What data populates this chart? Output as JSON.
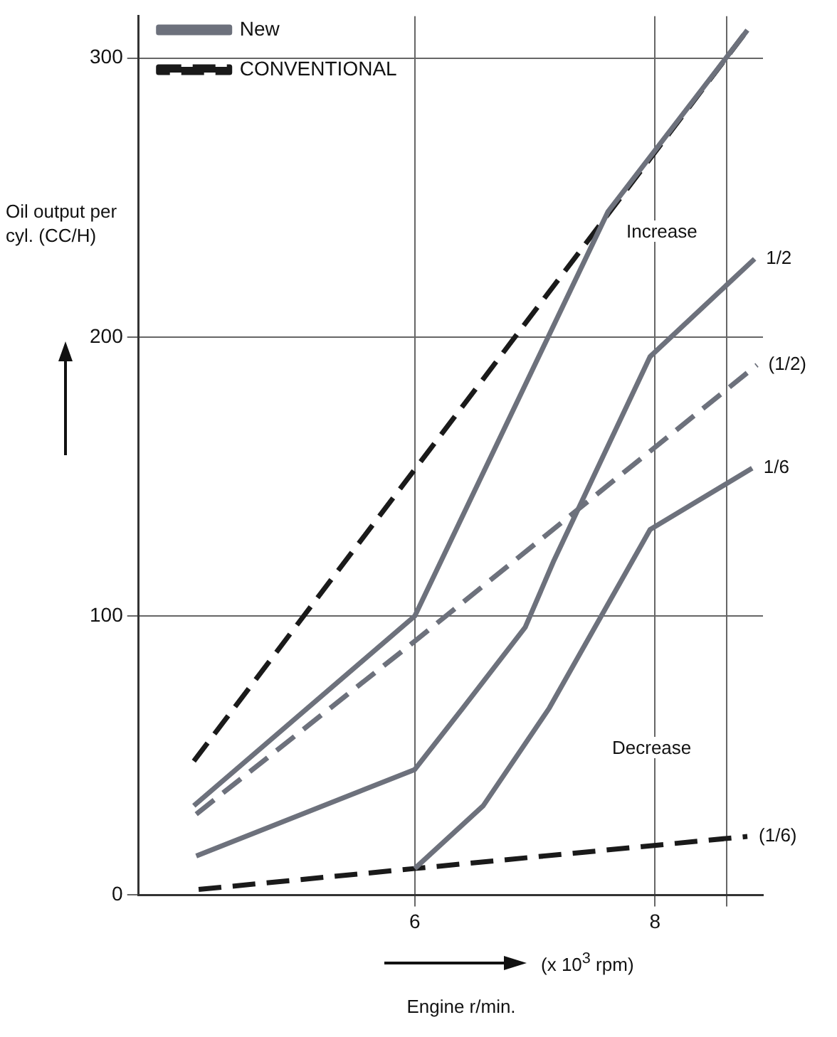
{
  "chart_data": {
    "type": "line",
    "xlabel": "Engine r/min.",
    "ylabel": "Oil output per cyl. (CC/H)",
    "xlim": [
      3.7,
      8.9
    ],
    "xticks": [
      6,
      8,
      {
        "value": 8.6,
        "label": null
      }
    ],
    "ylim": [
      0,
      315
    ],
    "yticks": [
      0,
      100,
      200,
      300
    ],
    "grid": true,
    "legend": "top left",
    "marker": "none",
    "series": [
      {
        "name": "New",
        "color": "#6d717c",
        "line_style": "solid",
        "x": [
          4.16,
          6,
          7.61,
          8.77
        ],
        "values": [
          32,
          100,
          245,
          310
        ]
      },
      {
        "name": "CONVENTIONAL",
        "color": "#1a1a1a",
        "line_style": "dashed",
        "x": [
          4.16,
          8.77
        ],
        "values": [
          48,
          310
        ]
      },
      {
        "color": "#6d717c",
        "line_style": "solid",
        "x": [
          4.18,
          6,
          6.4,
          6.92,
          7.16,
          7.96,
          8.83
        ],
        "values": [
          14,
          45,
          67,
          96,
          120,
          193,
          228
        ]
      },
      {
        "color": "#6d717c",
        "line_style": "dashed",
        "x": [
          4.18,
          6,
          8.85
        ],
        "values": [
          29,
          91,
          190
        ]
      },
      {
        "color": "#6d717c",
        "line_style": "solid",
        "x": [
          6,
          6.57,
          7.12,
          7.96,
          8.81
        ],
        "values": [
          9.5,
          32,
          67,
          131,
          153
        ]
      },
      {
        "color": "#1a1a1a",
        "line_style": "dashed",
        "x": [
          4.2,
          6,
          8.77
        ],
        "values": [
          2,
          9.5,
          21
        ]
      }
    ],
    "annotations": [
      "(x 10$^{3}$ rpm)",
      {
        "text": "1/2",
        "x": 8.83,
        "y": 228
      },
      {
        "text": "(1/2)",
        "x": 8.85,
        "y": 190
      },
      {
        "text": "1/6",
        "x": 8.81,
        "y": 153
      },
      {
        "text": "(1/6)",
        "x": 8.77,
        "y": 21
      },
      "Increase",
      "Decrease"
    ]
  }
}
